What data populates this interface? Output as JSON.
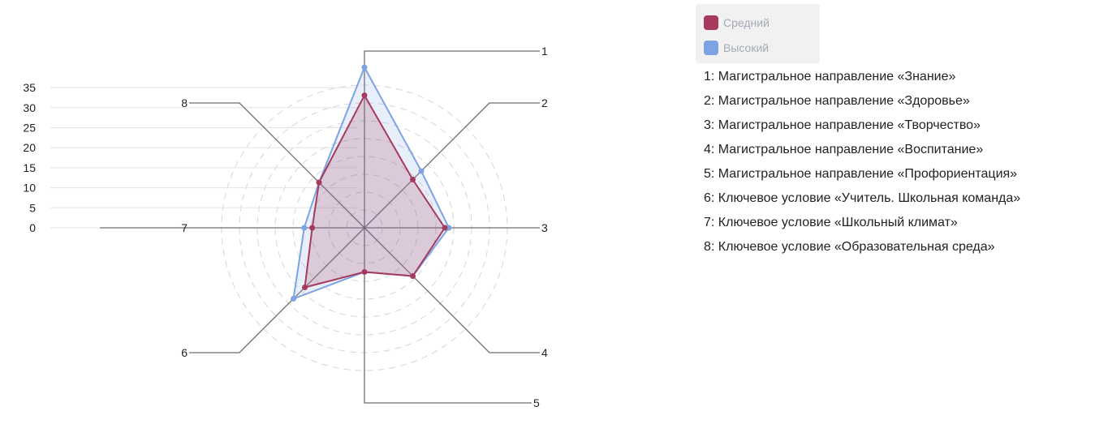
{
  "chart_data": {
    "type": "radar",
    "axes": [
      "1",
      "2",
      "3",
      "4",
      "5",
      "6",
      "7",
      "8"
    ],
    "scale_ticks": [
      "0",
      "5",
      "10",
      "15",
      "20",
      "25",
      "30",
      "35"
    ],
    "r_range": [
      0,
      35
    ],
    "grid_rings": 7,
    "series": [
      {
        "name": "Средний",
        "color": "#a63a5c",
        "values": [
          33,
          17,
          20,
          17,
          11,
          21,
          13,
          16
        ]
      },
      {
        "name": "Высокий",
        "color": "#7ea3e3",
        "values": [
          40,
          20,
          21,
          17,
          11,
          25,
          15,
          16
        ]
      }
    ],
    "legend_position": "top-right"
  },
  "axis_descriptions": [
    "1: Магистральное направление «Знание»",
    "2: Магистральное направление «Здоровье»",
    "3: Магистральное направление «Творчество»",
    "4: Магистральное направление «Воспитание»",
    "5: Магистральное направление «Профориентация»",
    "6: Ключевое условие «Учитель. Школьная команда»",
    "7: Ключевое условие «Школьный климат»",
    "8: Ключевое условие «Образовательная среда»"
  ]
}
